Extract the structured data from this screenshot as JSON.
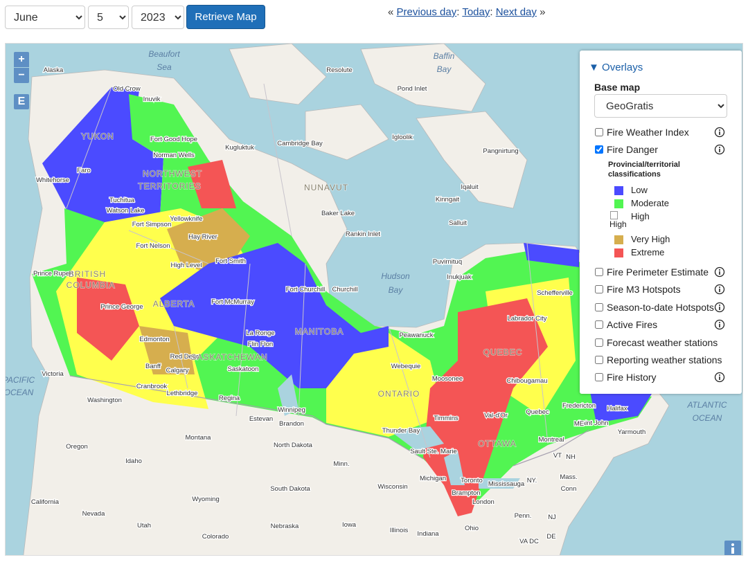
{
  "controls": {
    "month": "June",
    "day": "5",
    "year": "2023",
    "button": "Retrieve Map"
  },
  "nav": {
    "open": "«",
    "links": [
      "Previous day",
      "Today",
      "Next day"
    ],
    "separator": ":",
    "close": "»"
  },
  "map_controls": {
    "zoom_in": "+",
    "zoom_out": "−",
    "extent": "E"
  },
  "overlays": {
    "toggle": "▼",
    "title": "Overlays",
    "base_map_label": "Base map",
    "base_map": "GeoGratis",
    "layers": [
      {
        "name": "Fire Weather Index",
        "checked": false,
        "info": true
      },
      {
        "name": "Fire Danger",
        "checked": true,
        "info": true
      },
      {
        "name": "Fire Perimeter Estimate",
        "checked": false,
        "info": true
      },
      {
        "name": "Fire M3 Hotspots",
        "checked": false,
        "info": true
      },
      {
        "name": "Season-to-date Hotspots",
        "checked": false,
        "info": true
      },
      {
        "name": "Active Fires",
        "checked": false,
        "info": true
      },
      {
        "name": "Forecast weather stations",
        "checked": false,
        "info": false
      },
      {
        "name": "Reporting weather stations",
        "checked": false,
        "info": false
      },
      {
        "name": "Fire History",
        "checked": false,
        "info": true
      }
    ],
    "legend": {
      "heading": "Provincial/territorial classifications",
      "items": [
        {
          "label": "Low",
          "color": "#4b4bff"
        },
        {
          "label": "Moderate",
          "color": "#52f552"
        },
        {
          "label": "High",
          "image_alt": "High"
        },
        {
          "label": "Very High",
          "color": "#d6ae4e"
        },
        {
          "label": "Extreme",
          "color": "#f45555"
        }
      ]
    }
  },
  "map_labels": [
    "Alaska",
    "Beaufort",
    "Sea",
    "Resolute",
    "Baffin",
    "Bay",
    "Old Crow",
    "Inuvik",
    "Pond Inlet",
    "YUKON",
    "Fort Good Hope",
    "Norman Wells",
    "Kugluktuk",
    "Cambridge Bay",
    "Igloolik",
    "Pangnirtung",
    "Faro",
    "Whitehorse",
    "NORTHWEST",
    "TERRITORIES",
    "NUNAVUT",
    "Iqaluit",
    "Kinngait",
    "Tuchitua",
    "Watson Lake",
    "Fort Simpson",
    "Yellowknife",
    "Baker Lake",
    "Salluit",
    "Rankin Inlet",
    "Hay River",
    "Fort Nelson",
    "Fort Smith",
    "High Level",
    "Puvirnituq",
    "Inukjuak",
    "Prince Rupert",
    "BRITISH",
    "COLUMBIA",
    "Hudson",
    "Bay",
    "Fort McMurray",
    "Fort Churchill",
    "Churchill",
    "ALBERTA",
    "Schefferville",
    "Prince George",
    "Labrador City",
    "La Ronge",
    "MANITOBA",
    "Peawanuck",
    "Edmonton",
    "Flin Flon",
    "Red Deer",
    "SASKATCHEWAN",
    "Banff",
    "Calgary",
    "Webequie",
    "QUEBEC",
    "Saskatoon",
    "Victoria",
    "Moosonee",
    "Chibougamau",
    "Cranbrook",
    "PACIFIC",
    "OCEAN",
    "Lethbridge",
    "Regina",
    "ONTARIO",
    "Winnipeg",
    "Washington",
    "Brandon",
    "Estevan",
    "Fredericton",
    "Halifax",
    "ATLANTIC",
    "OCEAN",
    "Timmins",
    "Val-d'Or",
    "Quebec",
    "Thunder Bay",
    "Saint John",
    "ME",
    "Yarmouth",
    "Montana",
    "North Dakota",
    "Oregon",
    "Montreal",
    "OTTAWA",
    "Sault Ste. Marie",
    "VT",
    "NH",
    "Idaho",
    "Minn.",
    "Michigan",
    "NY.",
    "Mass.",
    "Toronto",
    "Mississauga",
    "Wisconsin",
    "South Dakota",
    "Conn",
    "Brampton",
    "London",
    "Wyoming",
    "California",
    "Nevada",
    "Penn.",
    "NJ",
    "Utah",
    "Nebraska",
    "Iowa",
    "Illinois",
    "Indiana",
    "Ohio",
    "Colorado",
    "DE",
    "VA DC"
  ]
}
